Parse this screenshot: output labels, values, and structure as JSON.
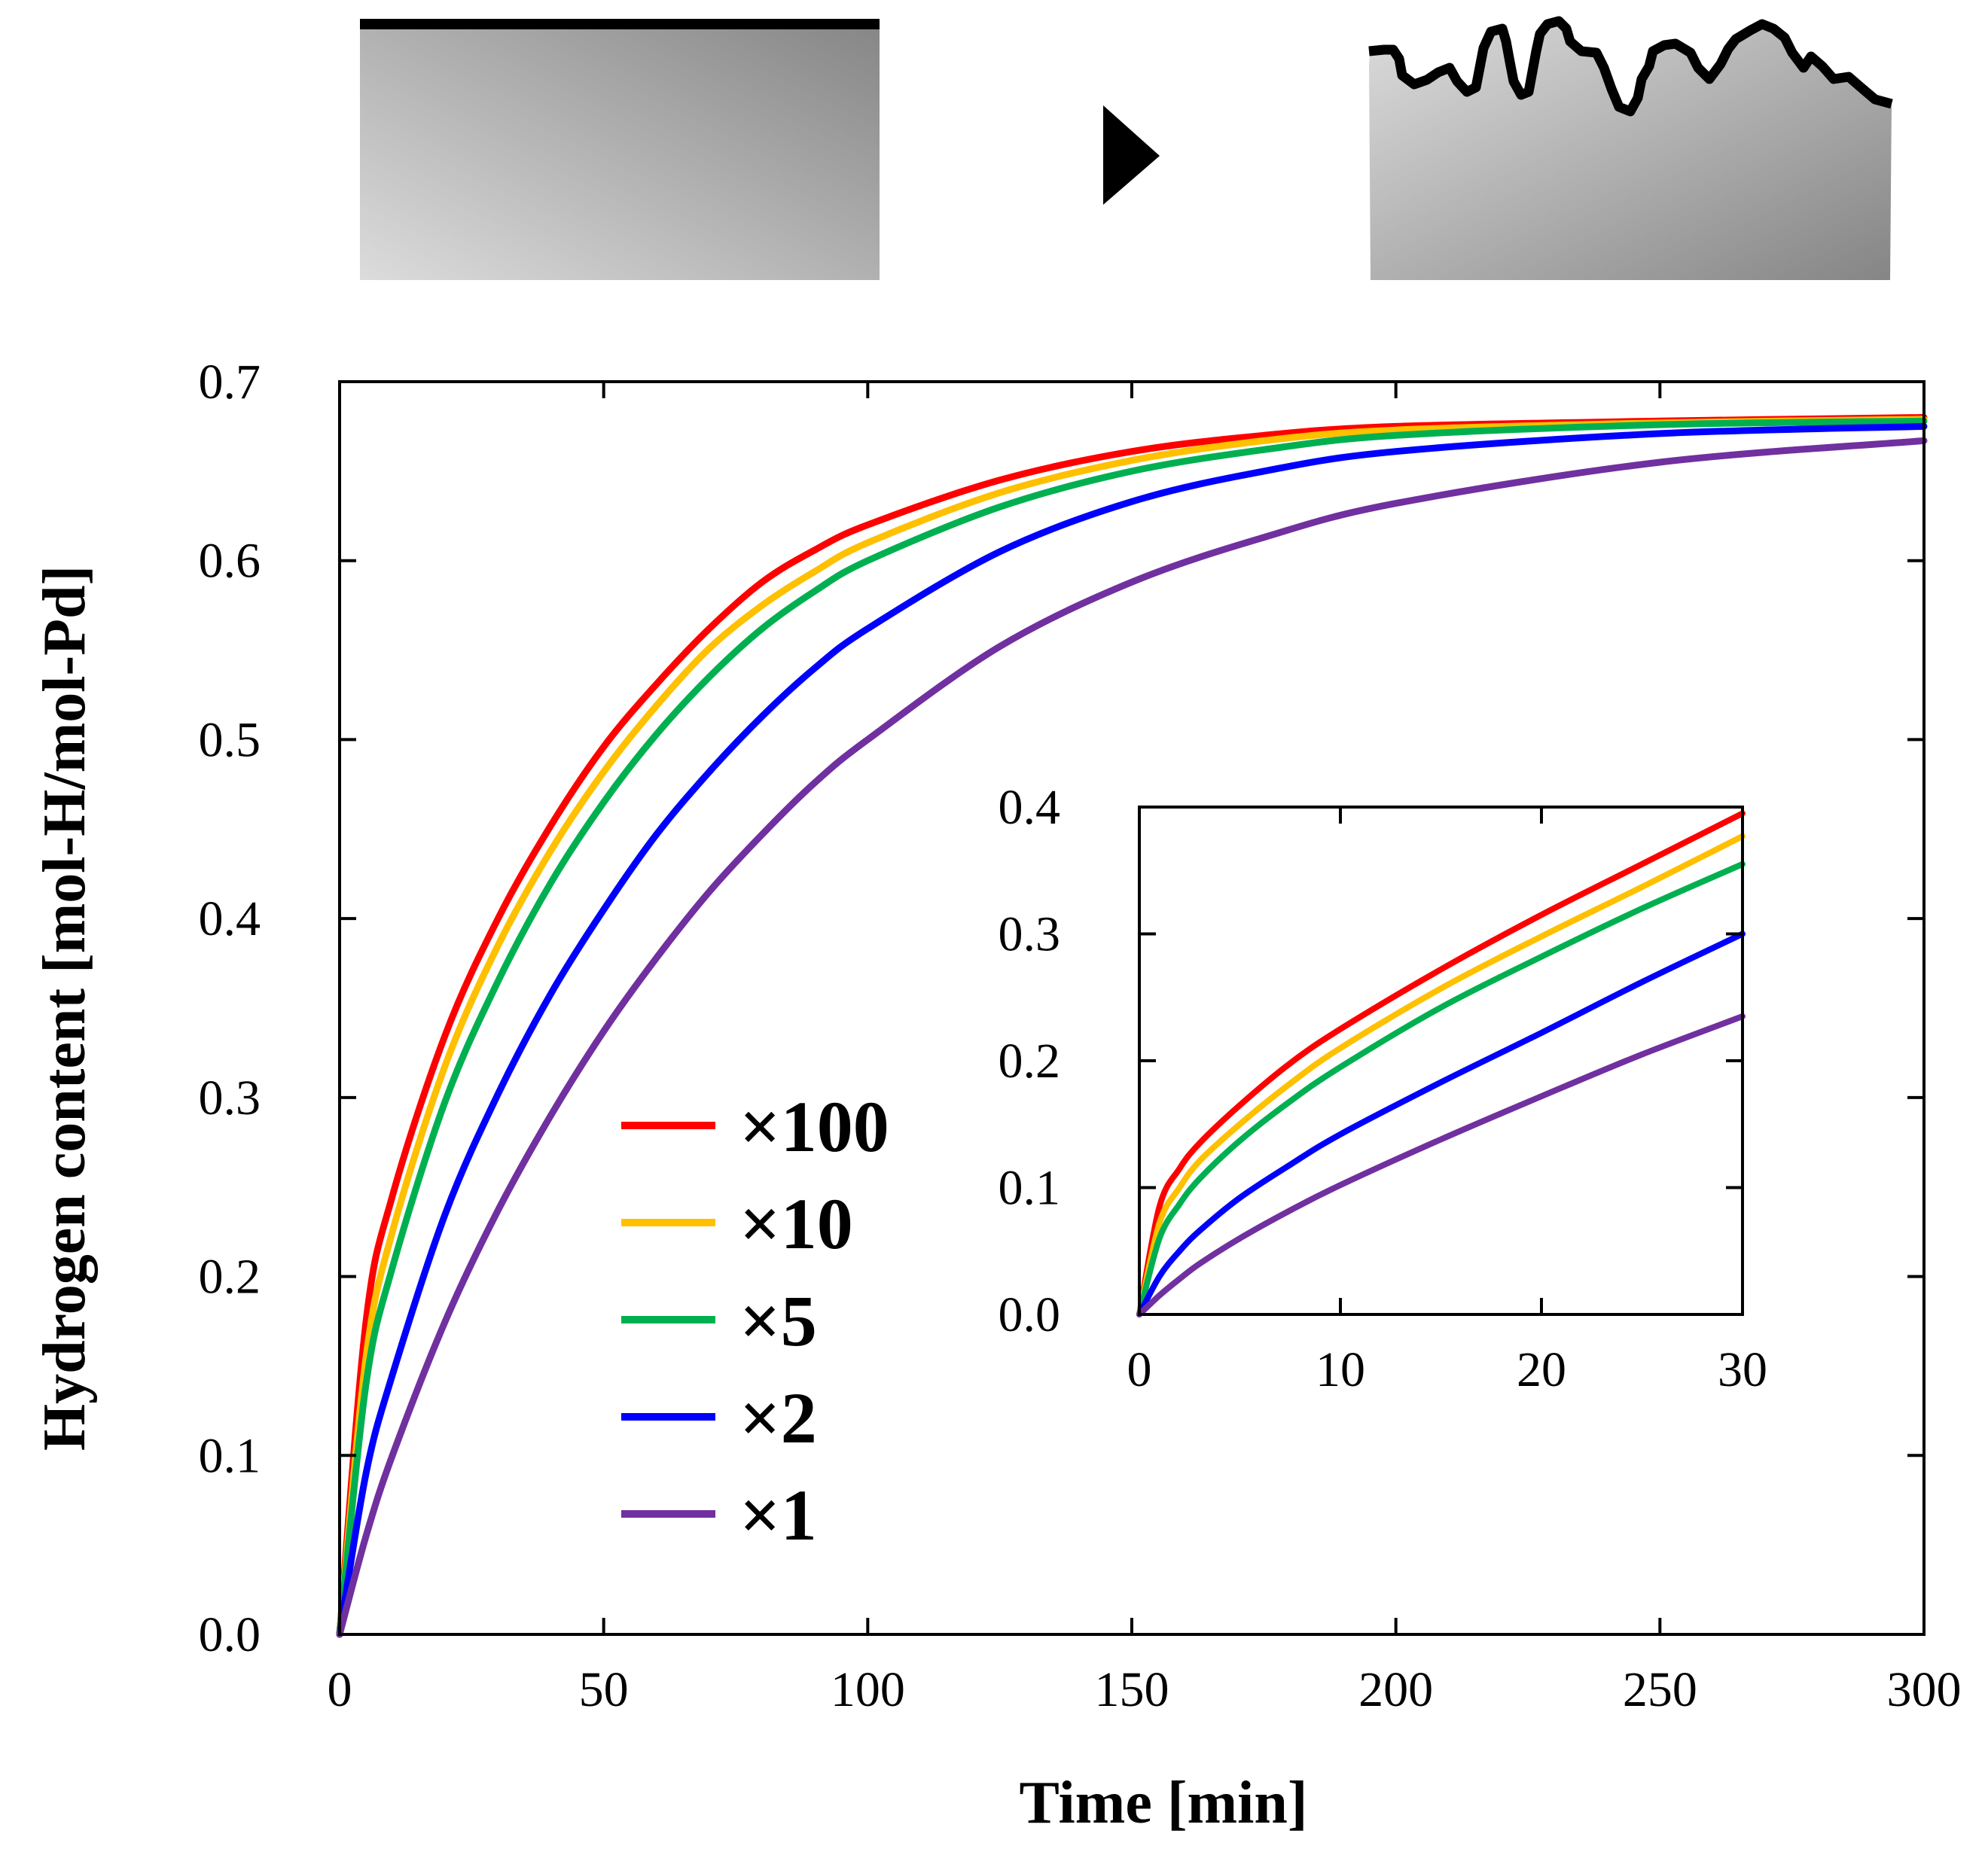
{
  "chart_data": [
    {
      "id": "main",
      "type": "line",
      "xlabel": "Time [min]",
      "ylabel": "Hydrogen content [mol-H/mol-Pd]",
      "xlim": [
        0,
        300
      ],
      "ylim": [
        0,
        0.7
      ],
      "xticks": [
        "0",
        "50",
        "100",
        "150",
        "200",
        "250",
        "300"
      ],
      "yticks": [
        "0.0",
        "0.1",
        "0.2",
        "0.3",
        "0.4",
        "0.5",
        "0.6",
        "0.7"
      ],
      "grid": false,
      "legend": "lower-left",
      "series": [
        {
          "name": "×100",
          "color": "#ff0000",
          "x": [
            0,
            5,
            10,
            20,
            30,
            40,
            50,
            60,
            70,
            80,
            90,
            100,
            125,
            150,
            175,
            200,
            250,
            300
          ],
          "y": [
            0,
            0.175,
            0.245,
            0.335,
            0.4,
            0.452,
            0.496,
            0.531,
            0.562,
            0.588,
            0.606,
            0.62,
            0.645,
            0.661,
            0.67,
            0.675,
            0.678,
            0.68
          ]
        },
        {
          "name": "×10",
          "color": "#ffc000",
          "x": [
            0,
            5,
            10,
            20,
            30,
            40,
            50,
            60,
            70,
            80,
            90,
            100,
            125,
            150,
            175,
            200,
            250,
            300
          ],
          "y": [
            0,
            0.155,
            0.225,
            0.318,
            0.385,
            0.438,
            0.482,
            0.519,
            0.551,
            0.575,
            0.594,
            0.61,
            0.638,
            0.656,
            0.667,
            0.673,
            0.677,
            0.679
          ]
        },
        {
          "name": "×5",
          "color": "#00b050",
          "x": [
            0,
            5,
            10,
            20,
            30,
            40,
            50,
            60,
            70,
            80,
            90,
            100,
            125,
            150,
            175,
            200,
            250,
            300
          ],
          "y": [
            0,
            0.14,
            0.205,
            0.298,
            0.365,
            0.42,
            0.465,
            0.503,
            0.535,
            0.562,
            0.583,
            0.6,
            0.63,
            0.65,
            0.662,
            0.67,
            0.676,
            0.678
          ]
        },
        {
          "name": "×2",
          "color": "#0000ff",
          "x": [
            0,
            5,
            10,
            20,
            30,
            40,
            50,
            60,
            70,
            80,
            90,
            100,
            125,
            150,
            175,
            200,
            250,
            300
          ],
          "y": [
            0,
            0.09,
            0.145,
            0.235,
            0.302,
            0.358,
            0.405,
            0.447,
            0.482,
            0.513,
            0.54,
            0.562,
            0.605,
            0.633,
            0.65,
            0.661,
            0.671,
            0.675
          ]
        },
        {
          "name": "×1",
          "color": "#7030a0",
          "x": [
            0,
            5,
            10,
            20,
            30,
            40,
            50,
            60,
            70,
            80,
            90,
            100,
            125,
            150,
            175,
            200,
            250,
            300
          ],
          "y": [
            0,
            0.055,
            0.1,
            0.175,
            0.237,
            0.29,
            0.337,
            0.378,
            0.415,
            0.447,
            0.476,
            0.5,
            0.552,
            0.588,
            0.613,
            0.632,
            0.655,
            0.667
          ]
        }
      ]
    },
    {
      "id": "inset",
      "type": "line",
      "xlim": [
        0,
        30
      ],
      "ylim": [
        0,
        0.4
      ],
      "xticks": [
        "0",
        "10",
        "20",
        "30"
      ],
      "yticks": [
        "0.0",
        "0.1",
        "0.2",
        "0.3",
        "0.4"
      ],
      "grid": false,
      "series": [
        {
          "color": "#ff0000",
          "x": [
            0,
            1,
            2,
            3,
            5,
            7.5,
            10,
            15,
            20,
            25,
            30
          ],
          "y": [
            0,
            0.085,
            0.115,
            0.135,
            0.165,
            0.198,
            0.225,
            0.272,
            0.315,
            0.355,
            0.395
          ]
        },
        {
          "color": "#ffc000",
          "x": [
            0,
            1,
            2,
            3,
            5,
            7.5,
            10,
            15,
            20,
            25,
            30
          ],
          "y": [
            0,
            0.072,
            0.1,
            0.121,
            0.15,
            0.182,
            0.21,
            0.257,
            0.298,
            0.337,
            0.377
          ]
        },
        {
          "color": "#00b050",
          "x": [
            0,
            1,
            2,
            3,
            5,
            7.5,
            10,
            15,
            20,
            25,
            30
          ],
          "y": [
            0,
            0.06,
            0.087,
            0.107,
            0.137,
            0.168,
            0.195,
            0.242,
            0.282,
            0.32,
            0.355
          ]
        },
        {
          "color": "#0000ff",
          "x": [
            0,
            1,
            2,
            3,
            5,
            7.5,
            10,
            15,
            20,
            25,
            30
          ],
          "y": [
            0,
            0.03,
            0.05,
            0.066,
            0.092,
            0.118,
            0.142,
            0.183,
            0.222,
            0.262,
            0.3
          ]
        },
        {
          "color": "#7030a0",
          "x": [
            0,
            1,
            2,
            3,
            5,
            7.5,
            10,
            15,
            20,
            25,
            30
          ],
          "y": [
            0,
            0.015,
            0.028,
            0.04,
            0.06,
            0.082,
            0.102,
            0.138,
            0.172,
            0.205,
            0.235
          ]
        }
      ]
    }
  ],
  "illustration": {
    "flat_surface_icon": "smooth-palladium-surface",
    "arrow_icon": "right-triangle-arrow",
    "rough_surface_icon": "roughened-palladium-surface"
  }
}
